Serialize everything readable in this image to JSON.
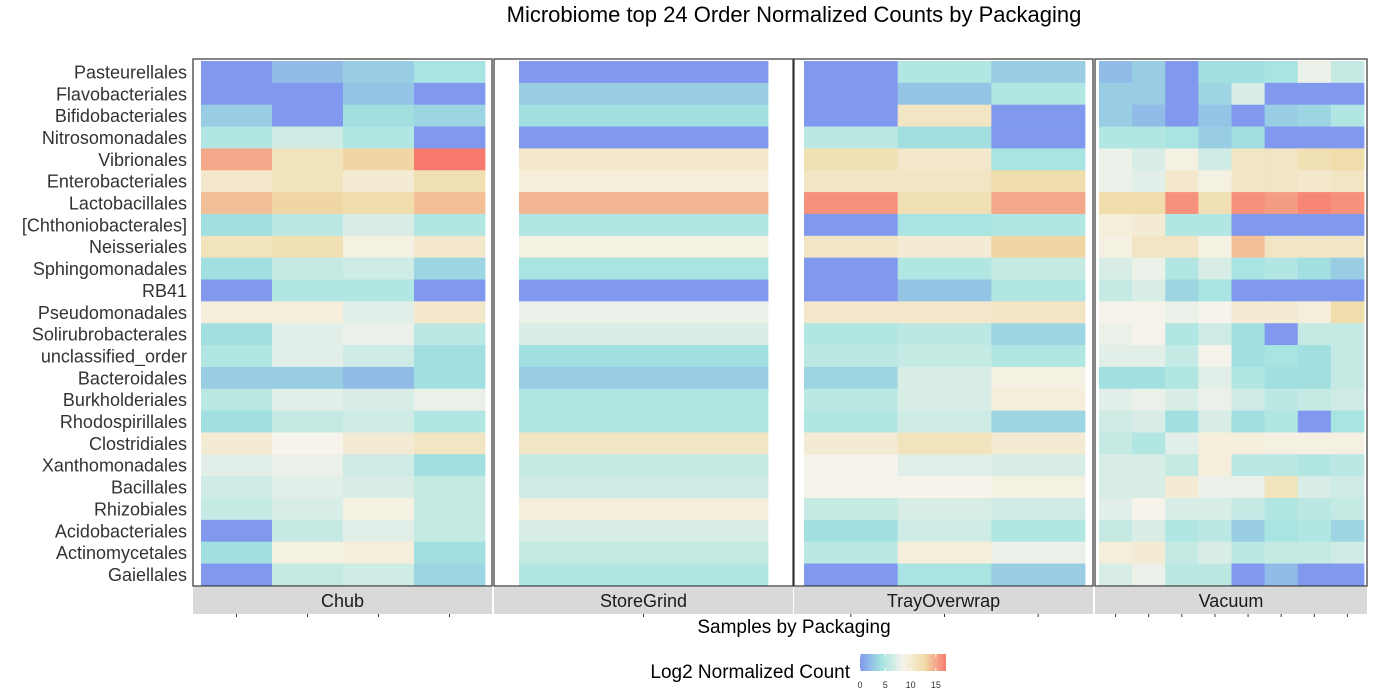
{
  "chart_data": {
    "type": "heatmap",
    "title": "Microbiome top 24 Order Normalized Counts by Packaging",
    "xlabel": "Samples by Packaging",
    "legend": {
      "title": "Log2 Normalized Count",
      "ticks": [
        "0",
        "5",
        "10",
        "15"
      ],
      "range": [
        0,
        17
      ],
      "colors": [
        "#8099ee",
        "#a3e3e0",
        "#f5f3ea",
        "#f0dca8",
        "#f87a6f"
      ],
      "placement": "bottom"
    },
    "rows": [
      "Pasteurellales",
      "Flavobacteriales",
      "Bifidobacteriales",
      "Nitrosomonadales",
      "Vibrionales",
      "Enterobacteriales",
      "Lactobacillales",
      "[Chthoniobacterales]",
      "Neisseriales",
      "Sphingomonadales",
      "RB41",
      "Pseudomonadales",
      "Solirubrobacterales",
      "unclassified_order",
      "Bacteroidales",
      "Burkholderiales",
      "Rhodospirillales",
      "Clostridiales",
      "Xanthomonadales",
      "Bacillales",
      "Rhizobiales",
      "Acidobacteriales",
      "Actinomycetales",
      "Gaiellales"
    ],
    "panels": [
      {
        "name": "Chub",
        "samples": 4,
        "values": [
          [
            0,
            2,
            3,
            4.5
          ],
          [
            0,
            0,
            2.5,
            0
          ],
          [
            3,
            0,
            4,
            3.5
          ],
          [
            5,
            6.5,
            5,
            0
          ],
          [
            15,
            11.5,
            13,
            17
          ],
          [
            10.5,
            11.5,
            10,
            12
          ],
          [
            14,
            13,
            12.5,
            14
          ],
          [
            4,
            5.5,
            7,
            5
          ],
          [
            11.5,
            12,
            9,
            10.5
          ],
          [
            4,
            6,
            6.5,
            3.5
          ],
          [
            0,
            5,
            5,
            0
          ],
          [
            9.5,
            9.5,
            7.5,
            10.5
          ],
          [
            4,
            7.5,
            8,
            5.5
          ],
          [
            5,
            7.5,
            6.5,
            4
          ],
          [
            3,
            3,
            2,
            4
          ],
          [
            5.5,
            7.5,
            7,
            8
          ],
          [
            4,
            6,
            6.5,
            5
          ],
          [
            10,
            8.5,
            10,
            11
          ],
          [
            7.5,
            8,
            6.5,
            4
          ],
          [
            6.5,
            7.5,
            7,
            6
          ],
          [
            6,
            7,
            9,
            6
          ],
          [
            0,
            6,
            7.5,
            6
          ],
          [
            4,
            9,
            9.5,
            4
          ],
          [
            0,
            6,
            6.5,
            3.5
          ]
        ]
      },
      {
        "name": "StoreGrind",
        "samples": 1,
        "values": [
          [
            0
          ],
          [
            3
          ],
          [
            4
          ],
          [
            0
          ],
          [
            10.5
          ],
          [
            9.5
          ],
          [
            14.5
          ],
          [
            5
          ],
          [
            9
          ],
          [
            4.5
          ],
          [
            0
          ],
          [
            8
          ],
          [
            7
          ],
          [
            4
          ],
          [
            3
          ],
          [
            5
          ],
          [
            5
          ],
          [
            11
          ],
          [
            6
          ],
          [
            6.5
          ],
          [
            9.5
          ],
          [
            7
          ],
          [
            6
          ],
          [
            5
          ]
        ]
      },
      {
        "name": "TrayOverwrap",
        "samples": 3,
        "values": [
          [
            0,
            5,
            3
          ],
          [
            0,
            2.5,
            5
          ],
          [
            0,
            11,
            0
          ],
          [
            5.5,
            4,
            0
          ],
          [
            12,
            10.5,
            4.5
          ],
          [
            11,
            11,
            12.5
          ],
          [
            16,
            12,
            15
          ],
          [
            0,
            4.5,
            5
          ],
          [
            11,
            10,
            13
          ],
          [
            0,
            5,
            6
          ],
          [
            0,
            2.5,
            5
          ],
          [
            10.5,
            10.5,
            11
          ],
          [
            5,
            5.5,
            3.5
          ],
          [
            5.5,
            6,
            5
          ],
          [
            3.5,
            7,
            9
          ],
          [
            5.5,
            7,
            9.5
          ],
          [
            5,
            6.5,
            3.5
          ],
          [
            10,
            11.5,
            10
          ],
          [
            8.5,
            7.5,
            7
          ],
          [
            8.5,
            8.5,
            9
          ],
          [
            6,
            7,
            6.5
          ],
          [
            4,
            6.5,
            5
          ],
          [
            5.5,
            9.5,
            8
          ],
          [
            0,
            4.5,
            3
          ]
        ]
      },
      {
        "name": "Vacuum",
        "samples": 8,
        "values": [
          [
            2,
            3,
            0,
            4,
            4,
            4.5,
            8,
            6
          ],
          [
            3,
            3,
            0,
            3.5,
            7,
            0,
            0,
            0
          ],
          [
            3,
            2,
            0,
            2.5,
            0,
            3,
            3.5,
            5
          ],
          [
            5,
            5,
            4.5,
            3,
            4,
            0,
            0,
            0
          ],
          [
            8,
            7,
            9,
            6.5,
            11,
            11,
            12,
            12.5
          ],
          [
            8,
            7.5,
            10.5,
            9,
            11,
            11,
            10.5,
            11
          ],
          [
            12.5,
            12.5,
            16,
            12,
            16,
            15.5,
            16.5,
            16
          ],
          [
            9.5,
            10,
            5,
            5,
            0,
            0,
            0,
            0
          ],
          [
            9,
            11,
            11,
            9,
            14,
            11,
            11,
            11
          ],
          [
            7,
            8,
            5,
            7,
            4.5,
            5,
            4,
            3
          ],
          [
            6,
            7,
            3.5,
            4.5,
            0,
            0,
            0,
            0
          ],
          [
            8.5,
            8.5,
            8,
            8.5,
            10,
            10,
            9.5,
            12.5
          ],
          [
            8,
            8.5,
            5,
            6.5,
            4,
            0,
            6,
            6
          ],
          [
            7.5,
            7.5,
            6,
            8.5,
            4,
            4.5,
            4,
            6
          ],
          [
            4,
            4,
            5,
            7.5,
            5,
            4,
            4,
            6
          ],
          [
            7.5,
            8,
            7,
            8,
            6.5,
            5.5,
            6,
            6.5
          ],
          [
            6.5,
            7,
            4,
            7,
            4,
            5,
            0,
            4.5
          ],
          [
            6,
            5,
            7.5,
            9.5,
            9.5,
            9,
            9,
            9
          ],
          [
            7,
            7,
            6,
            9.5,
            5.5,
            5.5,
            5,
            5.5
          ],
          [
            7,
            7,
            10,
            8,
            8,
            11.5,
            7,
            6.5
          ],
          [
            7.5,
            8.5,
            7,
            7,
            6,
            5,
            5.5,
            6
          ],
          [
            6,
            7,
            5,
            5.5,
            3,
            4.5,
            5,
            3.5
          ],
          [
            9.5,
            10,
            6,
            7,
            5.5,
            6,
            6,
            6.5
          ],
          [
            7,
            8,
            5.5,
            5.5,
            0,
            2,
            0,
            0
          ]
        ]
      }
    ]
  }
}
